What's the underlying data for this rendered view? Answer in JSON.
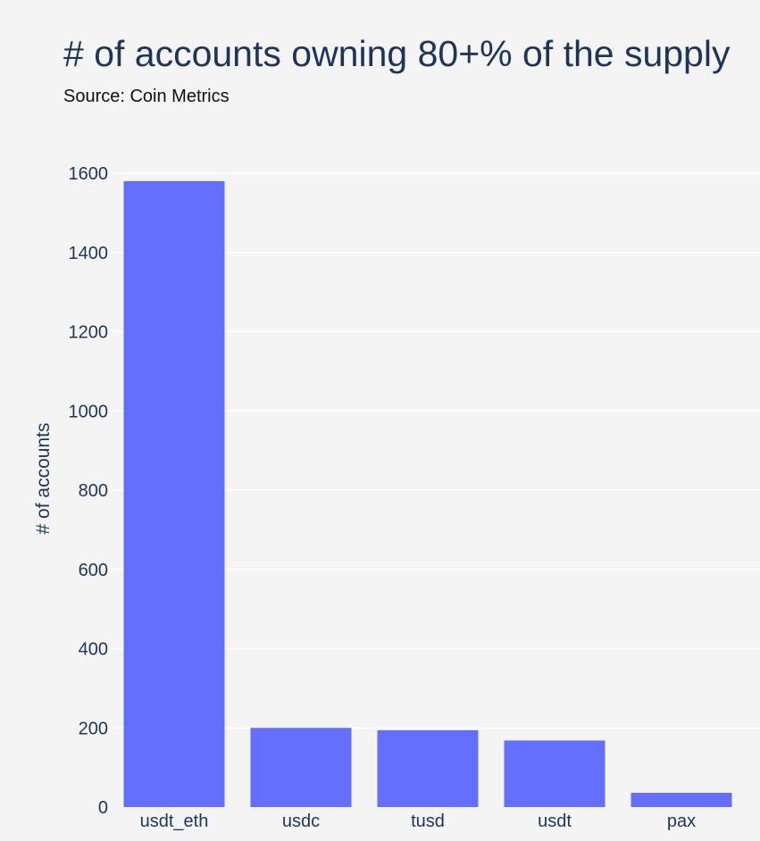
{
  "chart_data": {
    "type": "bar",
    "title": "# of accounts owning 80+% of the supply",
    "subtitle": "Source: Coin Metrics",
    "xlabel": "",
    "ylabel": "# of accounts",
    "categories": [
      "usdt_eth",
      "usdc",
      "tusd",
      "usdt",
      "pax"
    ],
    "values": [
      1580,
      200,
      194,
      168,
      36
    ],
    "ylim": [
      0,
      1600
    ],
    "yticks": [
      0,
      200,
      400,
      600,
      800,
      1000,
      1200,
      1400,
      1600
    ],
    "grid": true,
    "bar_color": "#636efa",
    "grid_color": "#ffffff",
    "text_color": "#1e3557"
  }
}
